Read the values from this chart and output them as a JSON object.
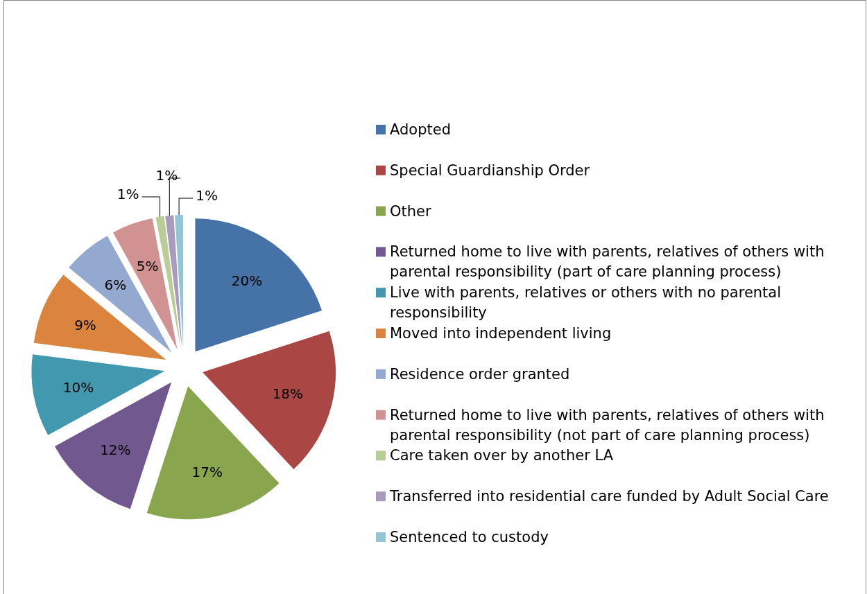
{
  "chart_data": {
    "type": "pie",
    "categories": [
      "Adopted",
      "Special Guardianship Order",
      "Other",
      "Returned home to live with parents, relatives of others with parental responsibility (part of care planning process)",
      "Live with parents, relatives or others with no parental responsibility",
      "Moved into independent living",
      "Residence order granted",
      "Returned home to live with parents, relatives of others with parental responsibility (not part of care planning process)",
      "Care taken over by another LA",
      "Transferred into residential care funded by Adult Social Care",
      "Sentenced to custody"
    ],
    "values": [
      20,
      18,
      17,
      12,
      10,
      9,
      6,
      5,
      1,
      1,
      1
    ],
    "colors": [
      "#4572a7",
      "#aa4643",
      "#89a54e",
      "#71588f",
      "#4198af",
      "#db843d",
      "#93a9cf",
      "#d19392",
      "#b9cd96",
      "#a99bbd",
      "#92c5d6"
    ],
    "value_labels": [
      "20%",
      "18%",
      "17%",
      "12%",
      "10%",
      "9%",
      "6%",
      "5%",
      "1%",
      "1%",
      "1%"
    ],
    "legend": "right"
  }
}
